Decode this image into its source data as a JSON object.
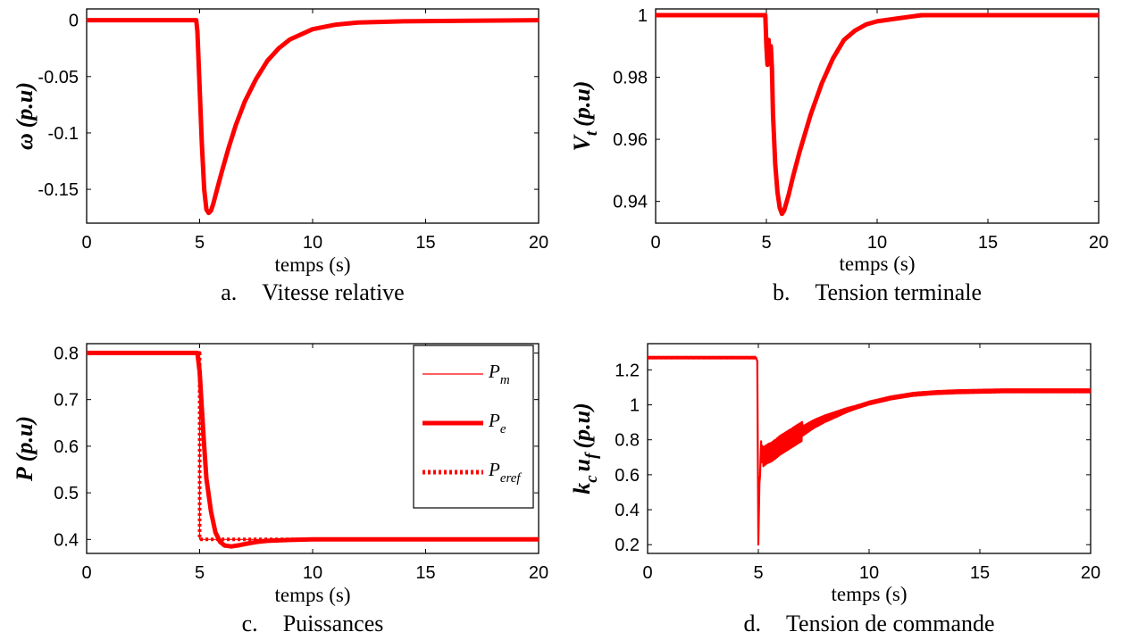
{
  "chart_data": [
    {
      "id": "a",
      "type": "line",
      "caption_letter": "a.",
      "caption_text": "Vitesse relative",
      "xlabel": "temps (s)",
      "ylabel_main": "ω",
      "ylabel_sub": "",
      "ylabel_unit": "(p.u)",
      "xlim": [
        0,
        20
      ],
      "ylim": [
        -0.18,
        0.01
      ],
      "xticks": [
        0,
        5,
        10,
        15,
        20
      ],
      "yticks": [
        0,
        -0.05,
        -0.1,
        -0.15
      ],
      "ytick_labels": [
        "0",
        "-0.05",
        "-0.1",
        "-0.15"
      ],
      "grid": false,
      "color": "#ff0000",
      "series": [
        {
          "x": [
            0,
            4.85,
            4.9,
            5.0,
            5.1,
            5.2,
            5.3,
            5.4,
            5.5,
            5.6,
            5.8,
            6.0,
            6.3,
            6.6,
            7.0,
            7.5,
            8.0,
            8.5,
            9.0,
            10.0,
            11.0,
            12.0,
            14.0,
            20.0
          ],
          "y": [
            0,
            0,
            -0.01,
            -0.06,
            -0.11,
            -0.15,
            -0.168,
            -0.171,
            -0.169,
            -0.163,
            -0.148,
            -0.133,
            -0.112,
            -0.093,
            -0.072,
            -0.052,
            -0.036,
            -0.025,
            -0.017,
            -0.008,
            -0.004,
            -0.002,
            -0.001,
            0
          ]
        }
      ]
    },
    {
      "id": "b",
      "type": "line",
      "caption_letter": "b.",
      "caption_text": "Tension terminale",
      "xlabel": "temps (s)",
      "ylabel_main": "V",
      "ylabel_sub": "t",
      "ylabel_unit": "(p.u)",
      "xlim": [
        0,
        20
      ],
      "ylim": [
        0.933,
        1.002
      ],
      "xticks": [
        0,
        5,
        10,
        15,
        20
      ],
      "yticks": [
        0.94,
        0.96,
        0.98,
        1
      ],
      "ytick_labels": [
        "0.94",
        "0.96",
        "0.98",
        "1"
      ],
      "grid": false,
      "color": "#ff0000",
      "series": [
        {
          "x": [
            0,
            4.95,
            5.0,
            5.05,
            5.1,
            5.15,
            5.2,
            5.25,
            5.3,
            5.4,
            5.5,
            5.6,
            5.7,
            5.8,
            6.0,
            6.2,
            6.5,
            7.0,
            7.5,
            8.0,
            8.5,
            9.0,
            9.5,
            10.0,
            11.0,
            12.0,
            20.0
          ],
          "y": [
            1,
            1,
            0.99,
            0.984,
            0.992,
            0.985,
            0.99,
            0.983,
            0.968,
            0.952,
            0.943,
            0.938,
            0.936,
            0.937,
            0.942,
            0.948,
            0.956,
            0.968,
            0.978,
            0.986,
            0.992,
            0.995,
            0.997,
            0.998,
            0.999,
            1.0,
            1.0
          ]
        }
      ]
    },
    {
      "id": "c",
      "type": "line",
      "caption_letter": "c.",
      "caption_text": "Puissances",
      "xlabel": "temps (s)",
      "ylabel_main": "P",
      "ylabel_sub": "",
      "ylabel_unit": "(p.u)",
      "xlim": [
        0,
        20
      ],
      "ylim": [
        0.37,
        0.82
      ],
      "xticks": [
        0,
        5,
        10,
        15,
        20
      ],
      "yticks": [
        0.4,
        0.5,
        0.6,
        0.7,
        0.8
      ],
      "ytick_labels": [
        "0.4",
        "0.5",
        "0.6",
        "0.7",
        "0.8"
      ],
      "grid": false,
      "color": "#ff0000",
      "legend": {
        "position": "top-right",
        "entries": [
          {
            "main": "P",
            "sub": "m",
            "style": "thin"
          },
          {
            "main": "P",
            "sub": "e",
            "style": "thick"
          },
          {
            "main": "P",
            "sub": "eref",
            "style": "dotted"
          }
        ]
      },
      "series": [
        {
          "name": "Pm",
          "style": "thin",
          "x": [
            0,
            5.0,
            5.0,
            20
          ],
          "y": [
            0.8,
            0.8,
            0.4,
            0.4
          ]
        },
        {
          "name": "Pe",
          "style": "thick",
          "x": [
            0,
            4.9,
            5.0,
            5.1,
            5.2,
            5.3,
            5.5,
            5.7,
            5.9,
            6.1,
            6.4,
            6.8,
            7.2,
            7.6,
            8.0,
            9.0,
            10.0,
            12.0,
            15.0,
            20.0
          ],
          "y": [
            0.8,
            0.8,
            0.76,
            0.68,
            0.6,
            0.53,
            0.46,
            0.415,
            0.395,
            0.387,
            0.385,
            0.388,
            0.392,
            0.395,
            0.397,
            0.399,
            0.4,
            0.4,
            0.4,
            0.4
          ]
        },
        {
          "name": "Peref",
          "style": "dotted",
          "x": [
            0,
            5.0,
            5.0,
            20
          ],
          "y": [
            0.8,
            0.8,
            0.4,
            0.4
          ]
        }
      ]
    },
    {
      "id": "d",
      "type": "line",
      "caption_letter": "d.",
      "caption_text": "Tension de commande",
      "xlabel": "temps (s)",
      "ylabel_main": "k",
      "ylabel_sub": "c",
      "ylabel_main2": "u",
      "ylabel_sub2": "f",
      "ylabel_unit": "(p.u)",
      "xlim": [
        0,
        20
      ],
      "ylim": [
        0.15,
        1.35
      ],
      "xticks": [
        0,
        5,
        10,
        15,
        20
      ],
      "yticks": [
        0.2,
        0.4,
        0.6,
        0.8,
        1,
        1.2
      ],
      "ytick_labels": [
        "0.2",
        "0.4",
        "0.6",
        "0.8",
        "1",
        "1.2"
      ],
      "grid": false,
      "color": "#ff0000",
      "series": [
        {
          "x": [
            0,
            4.9,
            4.95,
            5.0,
            5.05,
            5.1,
            5.2,
            5.4,
            5.6,
            5.8,
            6.0,
            6.5,
            7.0,
            7.5,
            8.0,
            9.0,
            10.0,
            11.0,
            12.0,
            13.0,
            14.0,
            16.0,
            20.0
          ],
          "y": [
            1.27,
            1.27,
            1.25,
            0.2,
            0.55,
            0.75,
            0.7,
            0.72,
            0.73,
            0.75,
            0.77,
            0.81,
            0.85,
            0.89,
            0.92,
            0.97,
            1.01,
            1.04,
            1.06,
            1.07,
            1.075,
            1.08,
            1.08
          ],
          "noise_band_max": 0.06
        }
      ]
    }
  ]
}
